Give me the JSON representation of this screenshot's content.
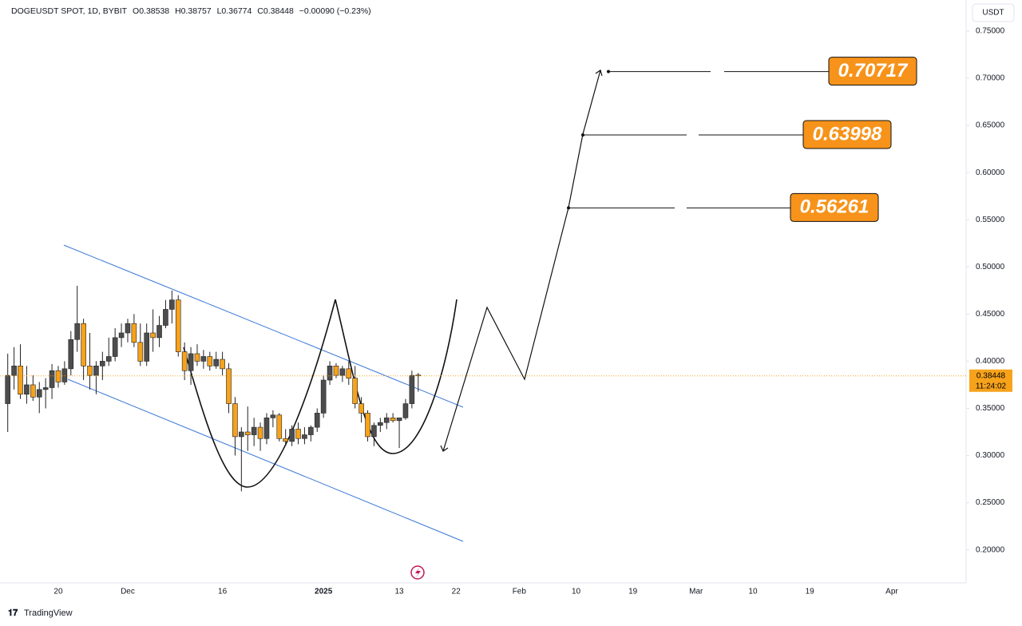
{
  "header": {
    "symbol": "DOGEUSDT SPOT, 1D, BYBIT",
    "labels": [
      "O",
      "H",
      "L",
      "C"
    ],
    "change": "−0.00090 (−0.23%)",
    "currency": "USDT",
    "countdown": "11:24:02",
    "brand": "TradingView"
  },
  "chart_data": {
    "type": "candlestick",
    "categories": [
      null,
      null,
      null,
      null,
      null,
      null,
      null,
      null,
      "20",
      null,
      null,
      null,
      null,
      null,
      null,
      null,
      null,
      null,
      null,
      "Dec",
      null,
      null,
      null,
      null,
      null,
      null,
      null,
      null,
      null,
      null,
      null,
      null,
      null,
      null,
      "16",
      null,
      null,
      null,
      null,
      null,
      null,
      null,
      null,
      null,
      null,
      null,
      null,
      null,
      null,
      null,
      "2025",
      null,
      null,
      null,
      null,
      null,
      null,
      null,
      null,
      null,
      null,
      null,
      "13",
      null,
      null,
      null,
      null,
      null,
      null,
      null,
      null,
      "22",
      null,
      null,
      null,
      null,
      null,
      null,
      null,
      null,
      null,
      "Feb",
      null,
      null,
      null,
      null,
      null,
      null,
      null,
      null,
      "10",
      null,
      null,
      null,
      null,
      null,
      null,
      null,
      null,
      "19",
      null,
      null,
      null,
      null,
      null,
      null,
      null,
      null,
      null,
      "Mar",
      null,
      null,
      null,
      null,
      null,
      null,
      null,
      null,
      "10",
      null,
      null,
      null,
      null,
      null,
      null,
      null,
      null,
      "19",
      null,
      null,
      null,
      null,
      null,
      null,
      null,
      null,
      null,
      null,
      null,
      null,
      "Apr",
      null,
      null,
      null,
      null,
      null,
      null,
      null,
      null,
      null,
      null,
      null
    ],
    "open": [
      0.355,
      0.385,
      0.395,
      0.365,
      0.375,
      0.362,
      0.37,
      0.372,
      0.39,
      0.378,
      0.392,
      0.423,
      0.44,
      0.395,
      0.385,
      0.395,
      0.4,
      0.405,
      0.425,
      0.43,
      0.44,
      0.42,
      0.4,
      0.43,
      0.425,
      0.438,
      0.455,
      0.465,
      0.41,
      0.39,
      0.408,
      0.4,
      0.405,
      0.395,
      0.402,
      0.392,
      0.355,
      0.32,
      0.325,
      0.322,
      0.33,
      0.318,
      0.34,
      0.343,
      0.318,
      0.315,
      0.328,
      0.318,
      0.322,
      0.33,
      0.345,
      0.38,
      0.395,
      0.385,
      0.392,
      0.382,
      0.355,
      0.345,
      0.32,
      0.332,
      0.335,
      0.34,
      0.337,
      0.34,
      0.355,
      0.38538,
      null,
      null,
      null,
      null,
      null,
      null,
      null,
      null,
      null,
      null,
      null,
      null,
      null,
      null,
      null,
      null,
      null,
      null,
      null,
      null,
      null,
      null,
      null,
      null,
      null,
      null,
      null,
      null,
      null,
      null,
      null,
      null,
      null,
      null,
      null,
      null,
      null,
      null,
      null,
      null,
      null,
      null,
      null,
      null,
      null,
      null,
      null,
      null,
      null,
      null,
      null,
      null,
      null,
      null,
      null,
      null,
      null,
      null,
      null,
      null,
      null,
      null,
      null,
      null,
      null,
      null,
      null,
      null,
      null,
      null,
      null,
      null,
      null,
      null,
      null,
      null,
      null,
      null,
      null,
      null,
      null,
      null,
      null,
      null,
      null,
      null
    ],
    "high": [
      0.408,
      0.415,
      0.418,
      0.395,
      0.385,
      0.378,
      0.382,
      0.397,
      0.395,
      0.4,
      0.432,
      0.48,
      0.445,
      0.43,
      0.4,
      0.41,
      0.425,
      0.435,
      0.44,
      0.445,
      0.45,
      0.44,
      0.44,
      0.455,
      0.448,
      0.465,
      0.475,
      0.47,
      0.42,
      0.415,
      0.418,
      0.412,
      0.41,
      0.41,
      0.41,
      0.398,
      0.362,
      0.33,
      0.352,
      0.34,
      0.335,
      0.345,
      0.348,
      0.345,
      0.328,
      0.332,
      0.335,
      0.33,
      0.332,
      0.35,
      0.385,
      0.4,
      0.398,
      0.395,
      0.4,
      0.395,
      0.362,
      0.348,
      0.335,
      0.34,
      0.345,
      0.345,
      0.34,
      0.36,
      0.39,
      0.38757,
      null,
      null,
      null,
      null,
      null,
      null,
      null,
      null,
      null,
      null,
      null,
      null,
      null,
      null,
      null,
      null,
      null,
      null,
      null,
      null,
      null,
      null,
      null,
      null,
      null,
      null,
      null,
      null,
      null,
      null,
      null,
      null,
      null,
      null,
      null,
      null,
      null,
      null,
      null,
      null,
      null,
      null,
      null,
      null,
      null,
      null,
      null,
      null,
      null,
      null,
      null,
      null,
      null,
      null,
      null,
      null,
      null,
      null,
      null,
      null,
      null,
      null,
      null,
      null,
      null,
      null,
      null,
      null,
      null,
      null,
      null,
      null,
      null,
      null,
      null,
      null,
      null,
      null,
      null,
      null,
      null,
      null,
      null,
      null,
      null,
      null
    ],
    "low": [
      0.325,
      0.37,
      0.36,
      0.355,
      0.358,
      0.345,
      0.35,
      0.36,
      0.372,
      0.375,
      0.385,
      0.41,
      0.38,
      0.37,
      0.365,
      0.38,
      0.395,
      0.4,
      0.415,
      0.42,
      0.415,
      0.395,
      0.395,
      0.41,
      0.415,
      0.435,
      0.44,
      0.405,
      0.38,
      0.375,
      0.395,
      0.392,
      0.39,
      0.392,
      0.385,
      0.345,
      0.3,
      0.262,
      0.305,
      0.31,
      0.305,
      0.312,
      0.33,
      0.315,
      0.31,
      0.31,
      0.312,
      0.312,
      0.315,
      0.325,
      0.34,
      0.375,
      0.382,
      0.378,
      0.375,
      0.35,
      0.335,
      0.315,
      0.31,
      0.325,
      0.328,
      0.335,
      0.308,
      0.338,
      0.35,
      0.36774,
      null,
      null,
      null,
      null,
      null,
      null,
      null,
      null,
      null,
      null,
      null,
      null,
      null,
      null,
      null,
      null,
      null,
      null,
      null,
      null,
      null,
      null,
      null,
      null,
      null,
      null,
      null,
      null,
      null,
      null,
      null,
      null,
      null,
      null,
      null,
      null,
      null,
      null,
      null,
      null,
      null,
      null,
      null,
      null,
      null,
      null,
      null,
      null,
      null,
      null,
      null,
      null,
      null,
      null,
      null,
      null,
      null,
      null,
      null,
      null,
      null,
      null,
      null,
      null,
      null,
      null,
      null,
      null,
      null,
      null,
      null,
      null,
      null,
      null,
      null,
      null,
      null,
      null,
      null,
      null,
      null,
      null,
      null,
      null,
      null,
      null
    ],
    "close": [
      0.385,
      0.395,
      0.365,
      0.375,
      0.362,
      0.37,
      0.372,
      0.39,
      0.378,
      0.392,
      0.423,
      0.44,
      0.395,
      0.385,
      0.395,
      0.4,
      0.405,
      0.425,
      0.43,
      0.44,
      0.42,
      0.4,
      0.43,
      0.425,
      0.438,
      0.455,
      0.465,
      0.41,
      0.39,
      0.408,
      0.4,
      0.405,
      0.395,
      0.402,
      0.392,
      0.355,
      0.32,
      0.325,
      0.322,
      0.33,
      0.318,
      0.34,
      0.343,
      0.318,
      0.315,
      0.328,
      0.318,
      0.322,
      0.33,
      0.345,
      0.38,
      0.395,
      0.385,
      0.392,
      0.382,
      0.355,
      0.345,
      0.32,
      0.332,
      0.335,
      0.34,
      0.337,
      0.34,
      0.355,
      0.385,
      0.38448,
      null,
      null,
      null,
      null,
      null,
      null,
      null,
      null,
      null,
      null,
      null,
      null,
      null,
      null,
      null,
      null,
      null,
      null,
      null,
      null,
      null,
      null,
      null,
      null,
      null,
      null,
      null,
      null,
      null,
      null,
      null,
      null,
      null,
      null,
      null,
      null,
      null,
      null,
      null,
      null,
      null,
      null,
      null,
      null,
      null,
      null,
      null,
      null,
      null,
      null,
      null,
      null,
      null,
      null,
      null,
      null,
      null,
      null,
      null,
      null,
      null,
      null,
      null,
      null,
      null,
      null,
      null,
      null,
      null,
      null,
      null,
      null,
      null,
      null,
      null,
      null,
      null,
      null,
      null,
      null,
      null,
      null,
      null,
      null,
      null,
      null
    ],
    "up_color": "#4d4d4d",
    "down_color": "#f7a21b",
    "ylim": [
      0.165,
      0.783
    ],
    "yticks": [
      {
        "value": 0.75,
        "label": "0.75000"
      },
      {
        "value": 0.7,
        "label": "0.70000"
      },
      {
        "value": 0.65,
        "label": "0.65000"
      },
      {
        "value": 0.6,
        "label": "0.60000"
      },
      {
        "value": 0.55,
        "label": "0.55000"
      },
      {
        "value": 0.5,
        "label": "0.50000"
      },
      {
        "value": 0.45,
        "label": "0.45000"
      },
      {
        "value": 0.4,
        "label": "0.40000"
      },
      {
        "value": 0.35,
        "label": "0.35000"
      },
      {
        "value": 0.3,
        "label": "0.30000"
      },
      {
        "value": 0.25,
        "label": "0.25000"
      },
      {
        "value": 0.2,
        "label": "0.20000"
      }
    ],
    "grid": false,
    "targets": [
      0.56261,
      0.63998,
      0.70717
    ],
    "target_color": "#f7931a",
    "channel_color": "#3a78d8"
  }
}
